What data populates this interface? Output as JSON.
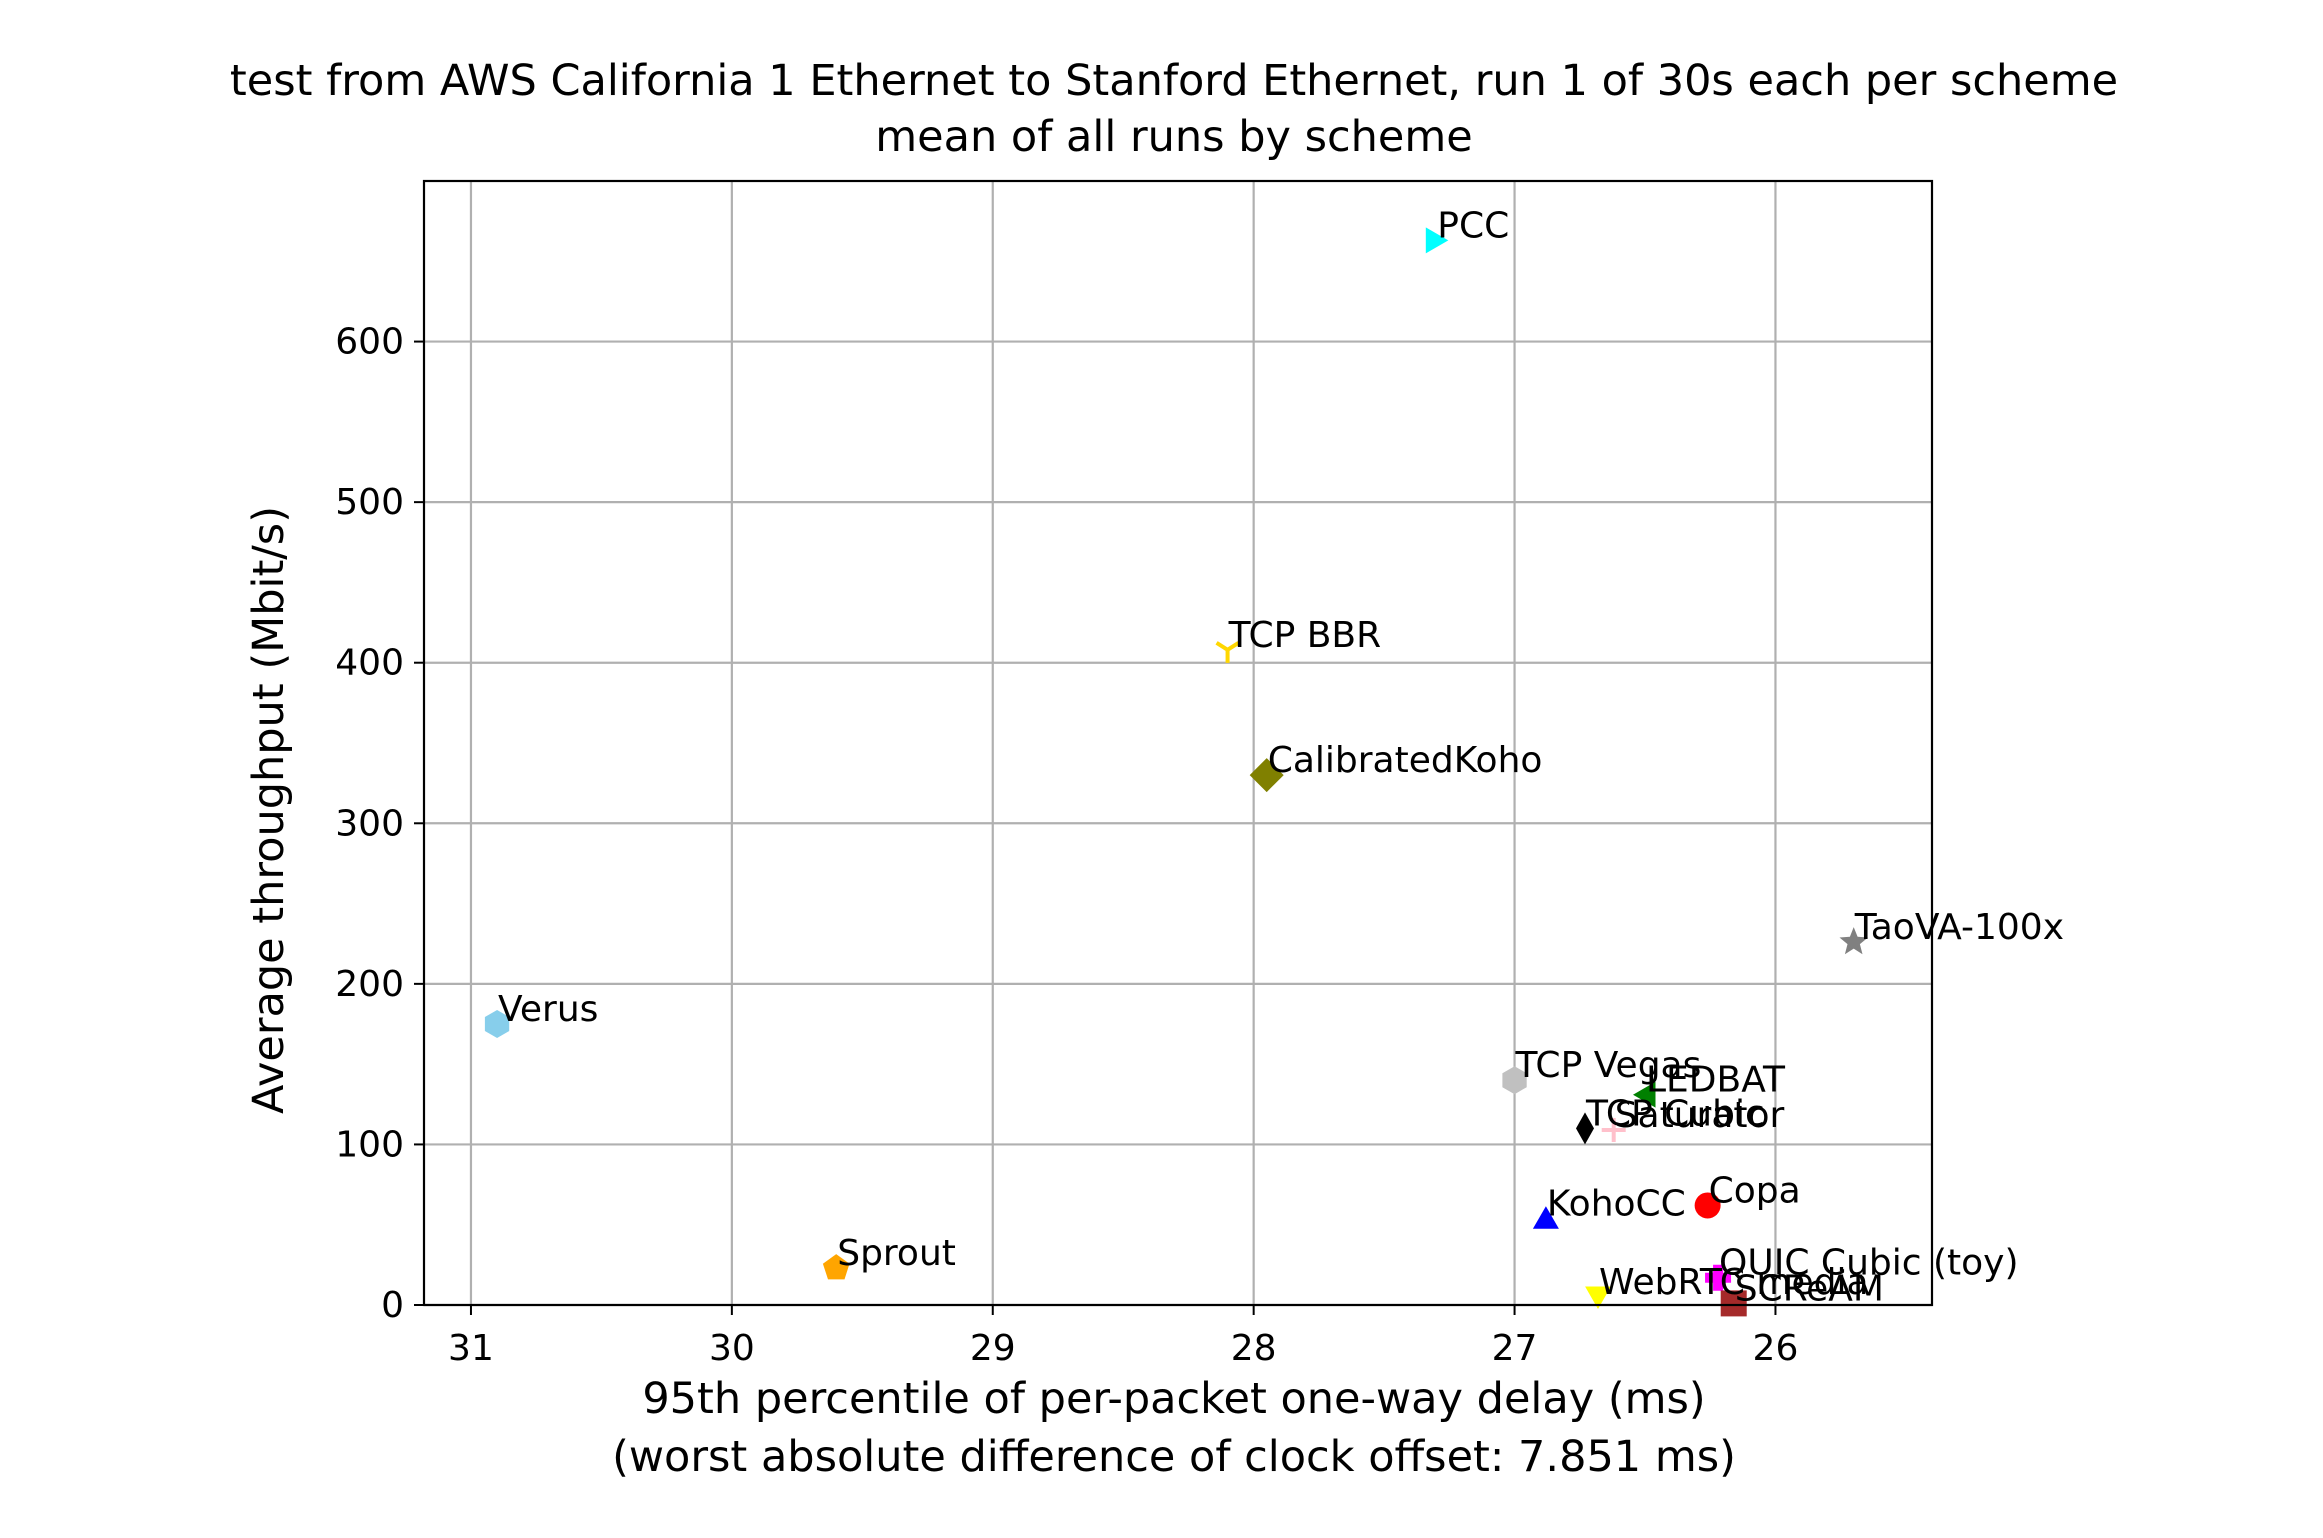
{
  "chart_data": {
    "type": "scatter",
    "title": "test from AWS California 1 Ethernet to Stanford Ethernet, run 1 of 30s each per scheme",
    "subtitle": "mean of all runs by scheme",
    "xlabel": "95th percentile of per-packet one-way delay (ms)",
    "xlabel_note": "(worst absolute difference of clock offset: 7.851 ms)",
    "ylabel": "Average throughput (Mbit/s)",
    "x_inverted": true,
    "xlim": [
      31.18,
      25.4
    ],
    "ylim": [
      0,
      700
    ],
    "xticks": [
      {
        "value": 31,
        "label": "31"
      },
      {
        "value": 30,
        "label": "30"
      },
      {
        "value": 29,
        "label": "29"
      },
      {
        "value": 28,
        "label": "28"
      },
      {
        "value": 27,
        "label": "27"
      },
      {
        "value": 26,
        "label": "26"
      }
    ],
    "yticks": [
      {
        "value": 0,
        "label": "0"
      },
      {
        "value": 100,
        "label": "100"
      },
      {
        "value": 200,
        "label": "200"
      },
      {
        "value": 300,
        "label": "300"
      },
      {
        "value": 400,
        "label": "400"
      },
      {
        "value": 500,
        "label": "500"
      },
      {
        "value": 600,
        "label": "600"
      }
    ],
    "grid": true,
    "legend": "none",
    "points": [
      {
        "name": "PCC",
        "x": 27.3,
        "y": 663,
        "color": "#00ffff",
        "marker": "triangle-right"
      },
      {
        "name": "TCP BBR",
        "x": 28.1,
        "y": 408,
        "color": "#ffd700",
        "marker": "tri-down"
      },
      {
        "name": "CalibratedKoho",
        "x": 27.95,
        "y": 330,
        "color": "#808000",
        "marker": "diamond"
      },
      {
        "name": "TaoVA-100x",
        "x": 25.7,
        "y": 226,
        "color": "#808080",
        "marker": "star"
      },
      {
        "name": "Verus",
        "x": 30.9,
        "y": 175,
        "color": "#87ceeb",
        "marker": "hexagon"
      },
      {
        "name": "TCP Vegas",
        "x": 27.0,
        "y": 140,
        "color": "#c0c0c0",
        "marker": "hexagon"
      },
      {
        "name": "LEDBAT",
        "x": 26.5,
        "y": 131,
        "color": "#008000",
        "marker": "triangle-left"
      },
      {
        "name": "TCP Cubic",
        "x": 26.73,
        "y": 110,
        "color": "#000000",
        "marker": "thin-diamond"
      },
      {
        "name": "Saturator",
        "x": 26.62,
        "y": 109,
        "color": "#ffc0cb",
        "marker": "plus"
      },
      {
        "name": "Copa",
        "x": 26.26,
        "y": 62,
        "color": "#ff0000",
        "marker": "circle"
      },
      {
        "name": "KohoCC",
        "x": 26.88,
        "y": 54,
        "color": "#0000ff",
        "marker": "triangle-up"
      },
      {
        "name": "Sprout",
        "x": 29.6,
        "y": 23,
        "color": "#ffa500",
        "marker": "pentagon"
      },
      {
        "name": "QUIC Cubic (toy)",
        "x": 26.22,
        "y": 17,
        "color": "#ff00ff",
        "marker": "plus-filled"
      },
      {
        "name": "WebRTC media",
        "x": 26.68,
        "y": 5,
        "color": "#ffff00",
        "marker": "triangle-down"
      },
      {
        "name": "SCReAM",
        "x": 26.16,
        "y": 1,
        "color": "#a52a2a",
        "marker": "square"
      }
    ]
  }
}
